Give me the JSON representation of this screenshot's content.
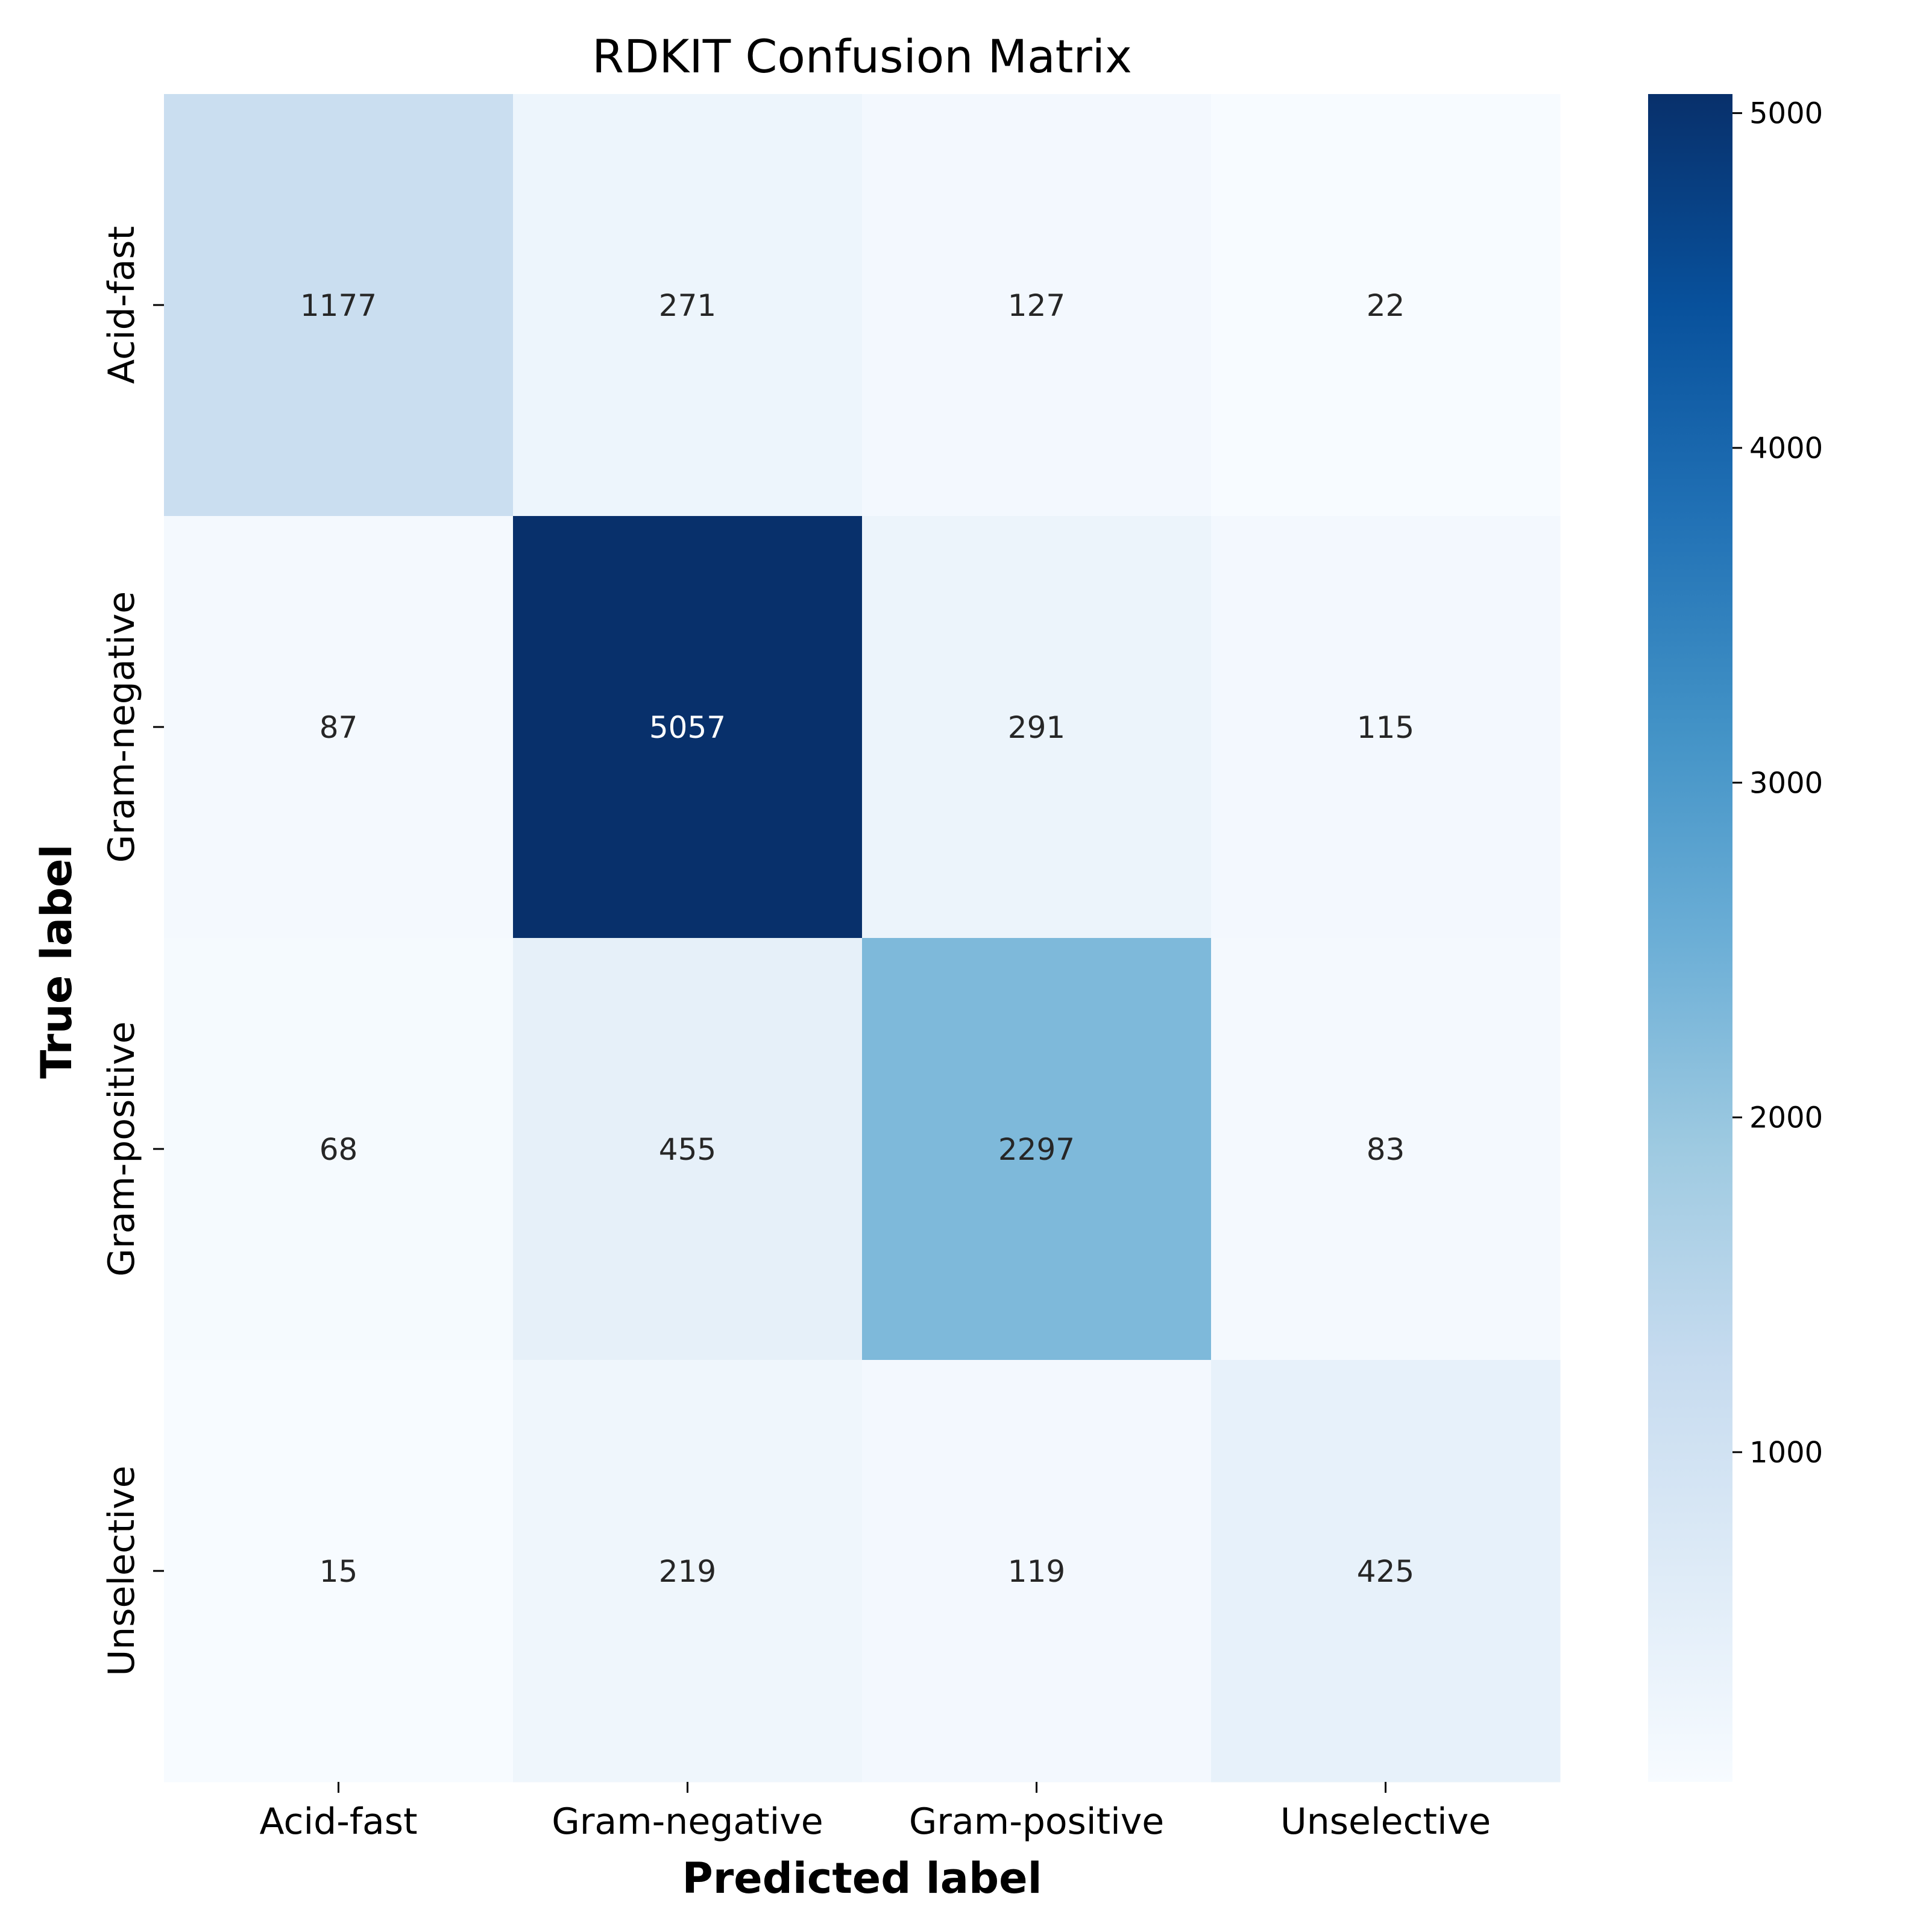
{
  "chart_data": {
    "type": "heatmap",
    "title": "RDKIT Confusion Matrix",
    "xlabel": "Predicted label",
    "ylabel": "True label",
    "x_categories": [
      "Acid-fast",
      "Gram-negative",
      "Gram-positive",
      "Unselective"
    ],
    "y_categories": [
      "Acid-fast",
      "Gram-negative",
      "Gram-positive",
      "Unselective"
    ],
    "values": [
      [
        1177,
        271,
        127,
        22
      ],
      [
        87,
        5057,
        291,
        115
      ],
      [
        68,
        455,
        2297,
        83
      ],
      [
        15,
        219,
        119,
        425
      ]
    ],
    "colorbar": {
      "min": 15,
      "max": 5057,
      "ticks": [
        1000,
        2000,
        3000,
        4000,
        5000
      ],
      "colormap": "Blues",
      "colors": [
        "#f7fbff",
        "#deebf7",
        "#c6dbef",
        "#9ecae1",
        "#6baed6",
        "#4292c6",
        "#2171b5",
        "#08519c",
        "#08306b"
      ]
    },
    "grid": false
  }
}
